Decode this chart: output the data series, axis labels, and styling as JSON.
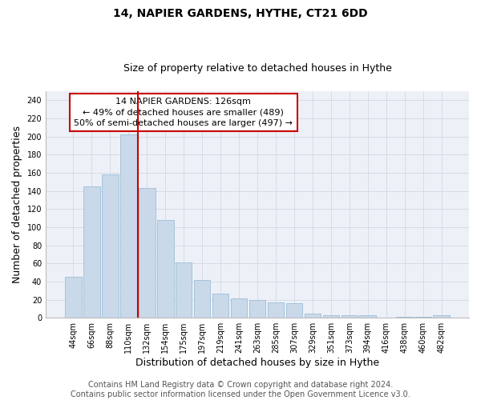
{
  "title": "14, NAPIER GARDENS, HYTHE, CT21 6DD",
  "subtitle": "Size of property relative to detached houses in Hythe",
  "xlabel": "Distribution of detached houses by size in Hythe",
  "ylabel": "Number of detached properties",
  "bar_labels": [
    "44sqm",
    "66sqm",
    "88sqm",
    "110sqm",
    "132sqm",
    "154sqm",
    "175sqm",
    "197sqm",
    "219sqm",
    "241sqm",
    "263sqm",
    "285sqm",
    "307sqm",
    "329sqm",
    "351sqm",
    "373sqm",
    "394sqm",
    "416sqm",
    "438sqm",
    "460sqm",
    "482sqm"
  ],
  "bar_values": [
    45,
    145,
    158,
    202,
    143,
    108,
    61,
    42,
    27,
    21,
    20,
    17,
    16,
    5,
    3,
    3,
    3,
    0,
    1,
    1,
    3
  ],
  "bar_color": "#c9d9ea",
  "bar_edge_color": "#9dbdd8",
  "vline_x_index": 4,
  "vline_color": "#cc0000",
  "annotation_line1": "14 NAPIER GARDENS: 126sqm",
  "annotation_line2": "← 49% of detached houses are smaller (489)",
  "annotation_line3": "50% of semi-detached houses are larger (497) →",
  "annotation_box_color": "#cc0000",
  "ylim": [
    0,
    250
  ],
  "yticks": [
    0,
    20,
    40,
    60,
    80,
    100,
    120,
    140,
    160,
    180,
    200,
    220,
    240
  ],
  "grid_color": "#d4dce8",
  "bg_color": "#edf1f7",
  "footer_text": "Contains HM Land Registry data © Crown copyright and database right 2024.\nContains public sector information licensed under the Open Government Licence v3.0.",
  "title_fontsize": 10,
  "subtitle_fontsize": 9,
  "axis_label_fontsize": 9,
  "tick_fontsize": 7,
  "annotation_fontsize": 8,
  "footer_fontsize": 7
}
